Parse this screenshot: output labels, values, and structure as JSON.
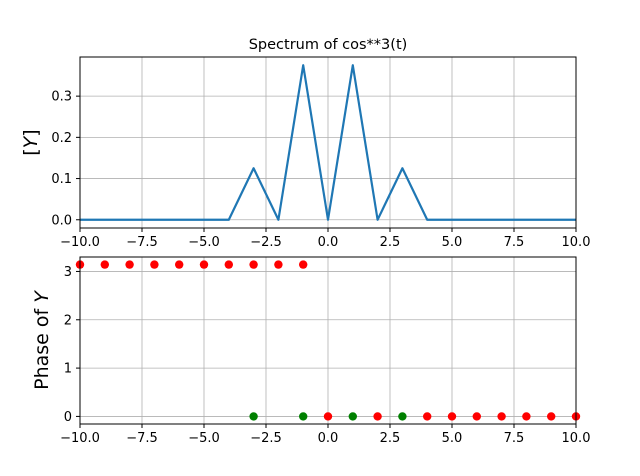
{
  "chart_data": [
    {
      "type": "line",
      "title": "Spectrum of cos**3(t)",
      "xlabel": "",
      "ylabel": "|Y|",
      "xlim": [
        -10,
        10
      ],
      "ylim": [
        -0.02,
        0.395
      ],
      "grid": true,
      "xticks": [
        -10,
        -7.5,
        -5,
        -2.5,
        0,
        2.5,
        5,
        7.5,
        10
      ],
      "xtick_labels": [
        "−10.0",
        "−7.5",
        "−5.0",
        "−2.5",
        "0.0",
        "2.5",
        "5.0",
        "7.5",
        "10.0"
      ],
      "yticks": [
        0,
        0.1,
        0.2,
        0.3
      ],
      "ytick_labels": [
        "0.0",
        "0.1",
        "0.2",
        "0.3"
      ],
      "color": "#1f77b4",
      "x": [
        -10,
        -9,
        -8,
        -7,
        -6,
        -5,
        -4,
        -3,
        -2,
        -1,
        0,
        1,
        2,
        3,
        4,
        5,
        6,
        7,
        8,
        9,
        10
      ],
      "y": [
        0,
        0,
        0,
        0,
        0,
        0,
        0,
        0.125,
        0,
        0.375,
        0,
        0.375,
        0,
        0.125,
        0,
        0,
        0,
        0,
        0,
        0,
        0
      ]
    },
    {
      "type": "scatter",
      "title": "",
      "xlabel": "",
      "ylabel": "Phase of Y",
      "xlim": [
        -10,
        10
      ],
      "ylim": [
        -0.157,
        3.299
      ],
      "grid": true,
      "xticks": [
        -10,
        -7.5,
        -5,
        -2.5,
        0,
        2.5,
        5,
        7.5,
        10
      ],
      "xtick_labels": [
        "−10.0",
        "−7.5",
        "−5.0",
        "−2.5",
        "0.0",
        "2.5",
        "5.0",
        "7.5",
        "10.0"
      ],
      "yticks": [
        0,
        1,
        2,
        3
      ],
      "ytick_labels": [
        "0",
        "1",
        "2",
        "3"
      ],
      "series": [
        {
          "color": "#ff0000",
          "x": [
            -10,
            -9,
            -8,
            -7,
            -6,
            -5,
            -4,
            -3,
            -2,
            -1,
            0,
            2,
            4,
            5,
            6,
            7,
            8,
            9,
            10
          ],
          "y": [
            3.14159,
            3.14159,
            3.14159,
            3.14159,
            3.14159,
            3.14159,
            3.14159,
            3.14159,
            3.14159,
            3.14159,
            0,
            0,
            0,
            0,
            0,
            0,
            0,
            0,
            0
          ]
        },
        {
          "color": "#008000",
          "x": [
            -3,
            -1,
            1,
            3
          ],
          "y": [
            0,
            0,
            0,
            0
          ]
        }
      ]
    }
  ]
}
